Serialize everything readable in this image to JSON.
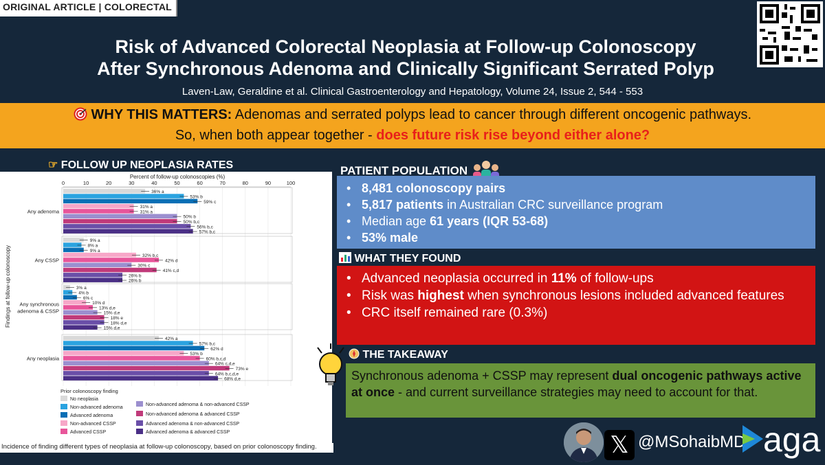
{
  "header": {
    "tag": "ORIGINAL ARTICLE | COLORECTAL",
    "title_line1": "Risk of Advanced Colorectal Neoplasia at Follow-up Colonoscopy",
    "title_line2": "After Synchronous Adenoma and Clinically Significant Serrated Polyp",
    "citation": "Laven-Law, Geraldine et al. Clinical Gastroenterology and Hepatology, Volume 24, Issue 2, 544 - 553"
  },
  "why": {
    "icon": "target-icon",
    "label": "WHY THIS MATTERS:",
    "text1": " Adenomas and serrated polyps lead to cancer through different oncogenic pathways.",
    "text2": "So, when both appear together - ",
    "highlight": "does future risk rise beyond either alone?"
  },
  "chart_section": {
    "icon": "pointing-hand-icon",
    "title": "FOLLOW UP NEOPLASIA RATES",
    "caption": "Incidence of finding different types of neoplasia at follow-up colonoscopy, based on prior colonoscopy finding."
  },
  "chart_data": {
    "type": "bar",
    "orientation": "horizontal",
    "xlabel": "Percent of follow-up colonoscopies (%)",
    "ylabel": "Findings at follow-up colonoscopy",
    "xlim": [
      0,
      100
    ],
    "xticks": [
      0,
      10,
      20,
      30,
      40,
      50,
      60,
      70,
      80,
      90,
      100
    ],
    "legend_title": "Prior colonoscopy finding",
    "series": [
      {
        "name": "No neoplasia",
        "color": "#d9d9d9"
      },
      {
        "name": "Non-advanced adenoma",
        "color": "#2aa3e0"
      },
      {
        "name": "Advanced adenoma",
        "color": "#0a6fb5"
      },
      {
        "name": "Non-advanced CSSP",
        "color": "#f7a7c8"
      },
      {
        "name": "Advanced CSSP",
        "color": "#e8559a"
      },
      {
        "name": "Non-advanced adenoma & non-advanced CSSP",
        "color": "#9b8fcf"
      },
      {
        "name": "Non-advanced adenoma & advanced CSSP",
        "color": "#c03a7a"
      },
      {
        "name": "Advanced adenoma & non-advanced CSSP",
        "color": "#6a4fa8"
      },
      {
        "name": "Advanced adenoma & advanced CSSP",
        "color": "#4a2f86"
      }
    ],
    "groups": [
      {
        "category": "Any adenoma",
        "values": [
          36,
          53,
          59,
          31,
          31,
          50,
          50,
          56,
          57
        ],
        "labels": [
          "36% a",
          "53% b",
          "59% c",
          "31% a",
          "31% a",
          "50% b",
          "50% b,c",
          "56% b,c",
          "57% b,c"
        ]
      },
      {
        "category": "Any CSSP",
        "values": [
          9,
          8,
          9,
          32,
          42,
          30,
          41,
          26,
          26
        ],
        "labels": [
          "9% a",
          "8% a",
          "9% a",
          "32% b,c",
          "42% d",
          "30% c",
          "41% c,d",
          "26% b",
          "26% b"
        ]
      },
      {
        "category": "Any synchronous adenoma & CSSP",
        "values": [
          3,
          4,
          6,
          10,
          13,
          15,
          18,
          18,
          15
        ],
        "labels": [
          "3% a",
          "4% b",
          "6% c",
          "10% d",
          "13% d,e",
          "15% d,e",
          "18% e",
          "18% d,e",
          "15% d,e"
        ]
      },
      {
        "category": "Any neoplasia",
        "values": [
          42,
          57,
          62,
          53,
          60,
          64,
          73,
          64,
          68
        ],
        "labels": [
          "42% a",
          "57% b,c",
          "62% d",
          "53% b",
          "60% b,c,d",
          "64% c,d,e",
          "73% e",
          "64% b,c,d,e",
          "68% d,e"
        ]
      }
    ]
  },
  "population": {
    "title": "PATIENT POPULATION",
    "icon": "people-icon",
    "items": [
      {
        "bold": "8,481 colonoscopy pairs",
        "rest": ""
      },
      {
        "bold": "5,817 patients",
        "rest": " in Australian CRC surveillance program"
      },
      {
        "pre": "Median age ",
        "bold": "61 years (IQR 53-68)"
      },
      {
        "bold": "53% male",
        "rest": ""
      }
    ]
  },
  "found": {
    "title": "WHAT THEY FOUND",
    "icon": "bar-chart-icon",
    "item1_pre": "Advanced neoplasia occurred in ",
    "item1_bold": "11%",
    "item1_post": " of follow-ups",
    "item2_pre": "Risk was ",
    "item2_bold": "highest",
    "item2_post": " when synchronous lesions included advanced features",
    "item3": "CRC itself remained rare (0.3%)"
  },
  "takeaway": {
    "title": "THE TAKEAWAY",
    "icon": "compass-icon",
    "pre": "Synchronous adenoma + CSSP may represent ",
    "bold": "dual oncogenic pathways active at once",
    "post": " - and current surveillance strategies may need to account for that."
  },
  "footer": {
    "handle": "@MSohaibMD",
    "x_icon": "x-logo-icon",
    "brand": "aga"
  }
}
